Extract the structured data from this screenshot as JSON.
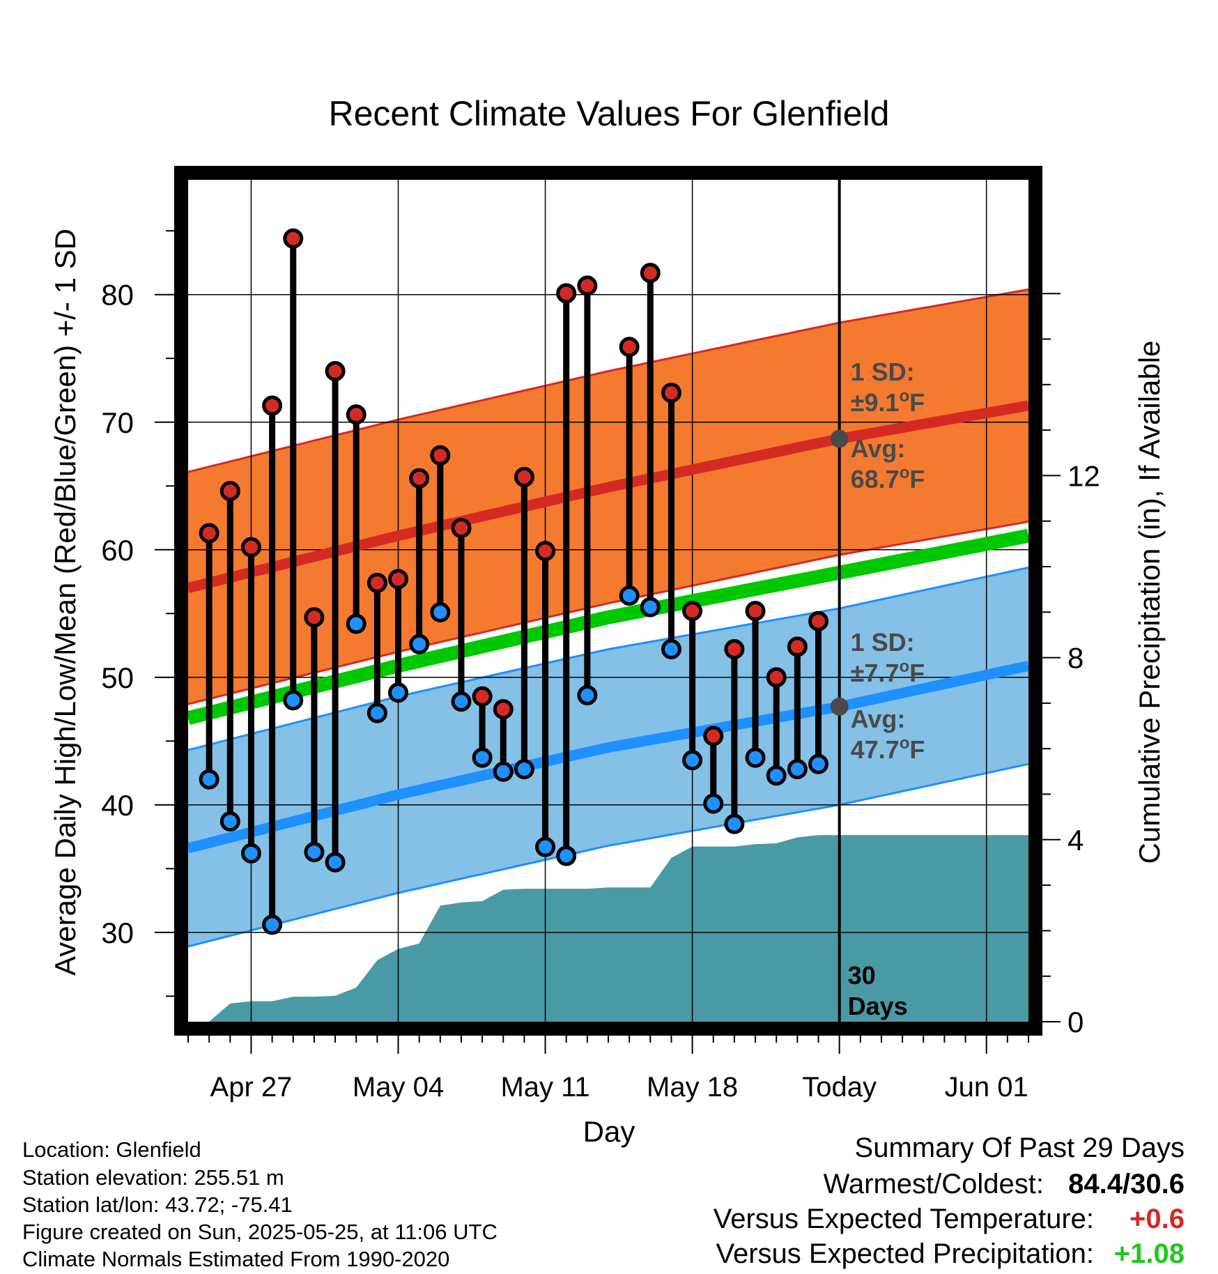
{
  "chart_data": {
    "type": "line",
    "title": "Recent Climate Values For Glenfield",
    "xlabel": "Day",
    "ylabel_left": "Average Daily High/Low/Mean (Red/Blue/Green) +/- 1 SD",
    "ylabel_right": "Cumulative Precipitation (in), If Available",
    "x_range": [
      "2025-04-24",
      "2025-06-03"
    ],
    "y_left_range": [
      23,
      89
    ],
    "y_left_ticks": [
      30,
      40,
      50,
      60,
      70,
      80
    ],
    "y_right_range": [
      0,
      18.5
    ],
    "y_right_ticks": [
      0,
      4,
      8,
      12
    ],
    "x_ticks": [
      {
        "date": "2025-04-27",
        "label": "Apr 27"
      },
      {
        "date": "2025-05-04",
        "label": "May 04"
      },
      {
        "date": "2025-05-11",
        "label": "May 11"
      },
      {
        "date": "2025-05-18",
        "label": "May 18"
      },
      {
        "date": "2025-05-25",
        "label": "Today"
      },
      {
        "date": "2025-06-01",
        "label": "Jun 01"
      }
    ],
    "grid": true,
    "today": "2025-05-25",
    "daily": [
      {
        "date": "2025-04-25",
        "high": 61.3,
        "low": 42.0
      },
      {
        "date": "2025-04-26",
        "high": 64.6,
        "low": 38.7
      },
      {
        "date": "2025-04-27",
        "high": 60.2,
        "low": 36.2
      },
      {
        "date": "2025-04-28",
        "high": 71.3,
        "low": 30.6
      },
      {
        "date": "2025-04-29",
        "high": 84.4,
        "low": 48.2
      },
      {
        "date": "2025-04-30",
        "high": 54.7,
        "low": 36.3
      },
      {
        "date": "2025-05-01",
        "high": 74.0,
        "low": 35.5
      },
      {
        "date": "2025-05-02",
        "high": 70.6,
        "low": 54.2
      },
      {
        "date": "2025-05-03",
        "high": 57.4,
        "low": 47.2
      },
      {
        "date": "2025-05-04",
        "high": 57.7,
        "low": 48.8
      },
      {
        "date": "2025-05-05",
        "high": 65.6,
        "low": 52.6
      },
      {
        "date": "2025-05-06",
        "high": 67.4,
        "low": 55.1
      },
      {
        "date": "2025-05-07",
        "high": 61.7,
        "low": 48.1
      },
      {
        "date": "2025-05-08",
        "high": 48.5,
        "low": 43.7
      },
      {
        "date": "2025-05-09",
        "high": 47.5,
        "low": 42.6
      },
      {
        "date": "2025-05-10",
        "high": 65.7,
        "low": 42.8
      },
      {
        "date": "2025-05-11",
        "high": 59.9,
        "low": 36.7
      },
      {
        "date": "2025-05-12",
        "high": 80.1,
        "low": 36.0
      },
      {
        "date": "2025-05-13",
        "high": 80.7,
        "low": 48.6
      },
      {
        "date": "2025-05-15",
        "high": 75.9,
        "low": 56.4
      },
      {
        "date": "2025-05-16",
        "high": 81.7,
        "low": 55.5
      },
      {
        "date": "2025-05-17",
        "high": 72.3,
        "low": 52.2
      },
      {
        "date": "2025-05-18",
        "high": 55.2,
        "low": 43.5
      },
      {
        "date": "2025-05-19",
        "high": 45.4,
        "low": 40.1
      },
      {
        "date": "2025-05-20",
        "high": 52.2,
        "low": 38.5
      },
      {
        "date": "2025-05-21",
        "high": 55.2,
        "low": 43.7
      },
      {
        "date": "2025-05-22",
        "high": 50.0,
        "low": 42.3
      },
      {
        "date": "2025-05-23",
        "high": 52.4,
        "low": 42.8
      },
      {
        "date": "2025-05-24",
        "high": 54.4,
        "low": 43.2
      }
    ],
    "normals": {
      "dates": [
        "2025-04-24",
        "2025-05-04",
        "2025-05-14",
        "2025-05-25",
        "2025-06-03"
      ],
      "avg_high": [
        57.0,
        61.1,
        64.9,
        68.7,
        71.3
      ],
      "avg_low": [
        36.6,
        40.8,
        44.5,
        47.7,
        50.9
      ],
      "avg_mean": [
        46.8,
        50.9,
        54.7,
        58.2,
        61.1
      ],
      "sd_high": 9.1,
      "sd_low": 7.7
    },
    "precip_cumulative": [
      {
        "date": "2025-04-25",
        "value": 0.0
      },
      {
        "date": "2025-04-26",
        "value": 0.4
      },
      {
        "date": "2025-04-27",
        "value": 0.45
      },
      {
        "date": "2025-04-28",
        "value": 0.45
      },
      {
        "date": "2025-04-29",
        "value": 0.55
      },
      {
        "date": "2025-04-30",
        "value": 0.55
      },
      {
        "date": "2025-05-01",
        "value": 0.57
      },
      {
        "date": "2025-05-02",
        "value": 0.75
      },
      {
        "date": "2025-05-03",
        "value": 1.35
      },
      {
        "date": "2025-05-04",
        "value": 1.6
      },
      {
        "date": "2025-05-05",
        "value": 1.72
      },
      {
        "date": "2025-05-06",
        "value": 2.55
      },
      {
        "date": "2025-05-07",
        "value": 2.62
      },
      {
        "date": "2025-05-08",
        "value": 2.65
      },
      {
        "date": "2025-05-09",
        "value": 2.9
      },
      {
        "date": "2025-05-10",
        "value": 2.92
      },
      {
        "date": "2025-05-11",
        "value": 2.92
      },
      {
        "date": "2025-05-12",
        "value": 2.92
      },
      {
        "date": "2025-05-13",
        "value": 2.92
      },
      {
        "date": "2025-05-14",
        "value": 2.95
      },
      {
        "date": "2025-05-15",
        "value": 2.95
      },
      {
        "date": "2025-05-16",
        "value": 2.95
      },
      {
        "date": "2025-05-17",
        "value": 3.6
      },
      {
        "date": "2025-05-18",
        "value": 3.85
      },
      {
        "date": "2025-05-19",
        "value": 3.85
      },
      {
        "date": "2025-05-20",
        "value": 3.85
      },
      {
        "date": "2025-05-21",
        "value": 3.9
      },
      {
        "date": "2025-05-22",
        "value": 3.92
      },
      {
        "date": "2025-05-23",
        "value": 4.05
      },
      {
        "date": "2025-05-24",
        "value": 4.1
      },
      {
        "date": "2025-05-25",
        "value": 4.1
      },
      {
        "date": "2025-06-03",
        "value": 4.1
      }
    ],
    "annotations": {
      "high_sd_line1": "1 SD:",
      "high_sd_line2": "±9.1",
      "high_avg_line1": "Avg:",
      "high_avg_line2": "68.7",
      "low_sd_line1": "1 SD:",
      "low_sd_line2": "±7.7",
      "low_avg_line1": "Avg:",
      "low_avg_line2": "47.7",
      "degree_symbol": "o",
      "unit": "F",
      "days_line1": "30",
      "days_line2": "Days"
    },
    "colors": {
      "high_band": "#f47a30",
      "high_line": "#d42a24",
      "low_band": "#85c0e6",
      "low_line": "#1e90ff",
      "mean_line": "#00c800",
      "precip": "#4a9aa5",
      "high_dot": "#d42a24",
      "low_dot": "#1e90ff",
      "avg_dot": "#4a4a4a"
    }
  },
  "info": {
    "location": "Location: Glenfield",
    "elevation": "Station elevation: 255.51 m",
    "latlon": "Station lat/lon: 43.72; -75.41",
    "created": "Figure created on Sun, 2025-05-25, at 11:06 UTC",
    "normals": "Climate Normals Estimated From 1990-2020"
  },
  "summary": {
    "title": "Summary Of Past 29 Days",
    "warm_cold_label": "Warmest/Coldest:",
    "warm_cold_value": "84.4/30.6",
    "temp_label": "Versus Expected Temperature:",
    "temp_value": "+0.6",
    "temp_color": "#d42a24",
    "precip_label": "Versus Expected Precipitation:",
    "precip_value": "+1.08",
    "precip_color": "#1ec81e"
  }
}
